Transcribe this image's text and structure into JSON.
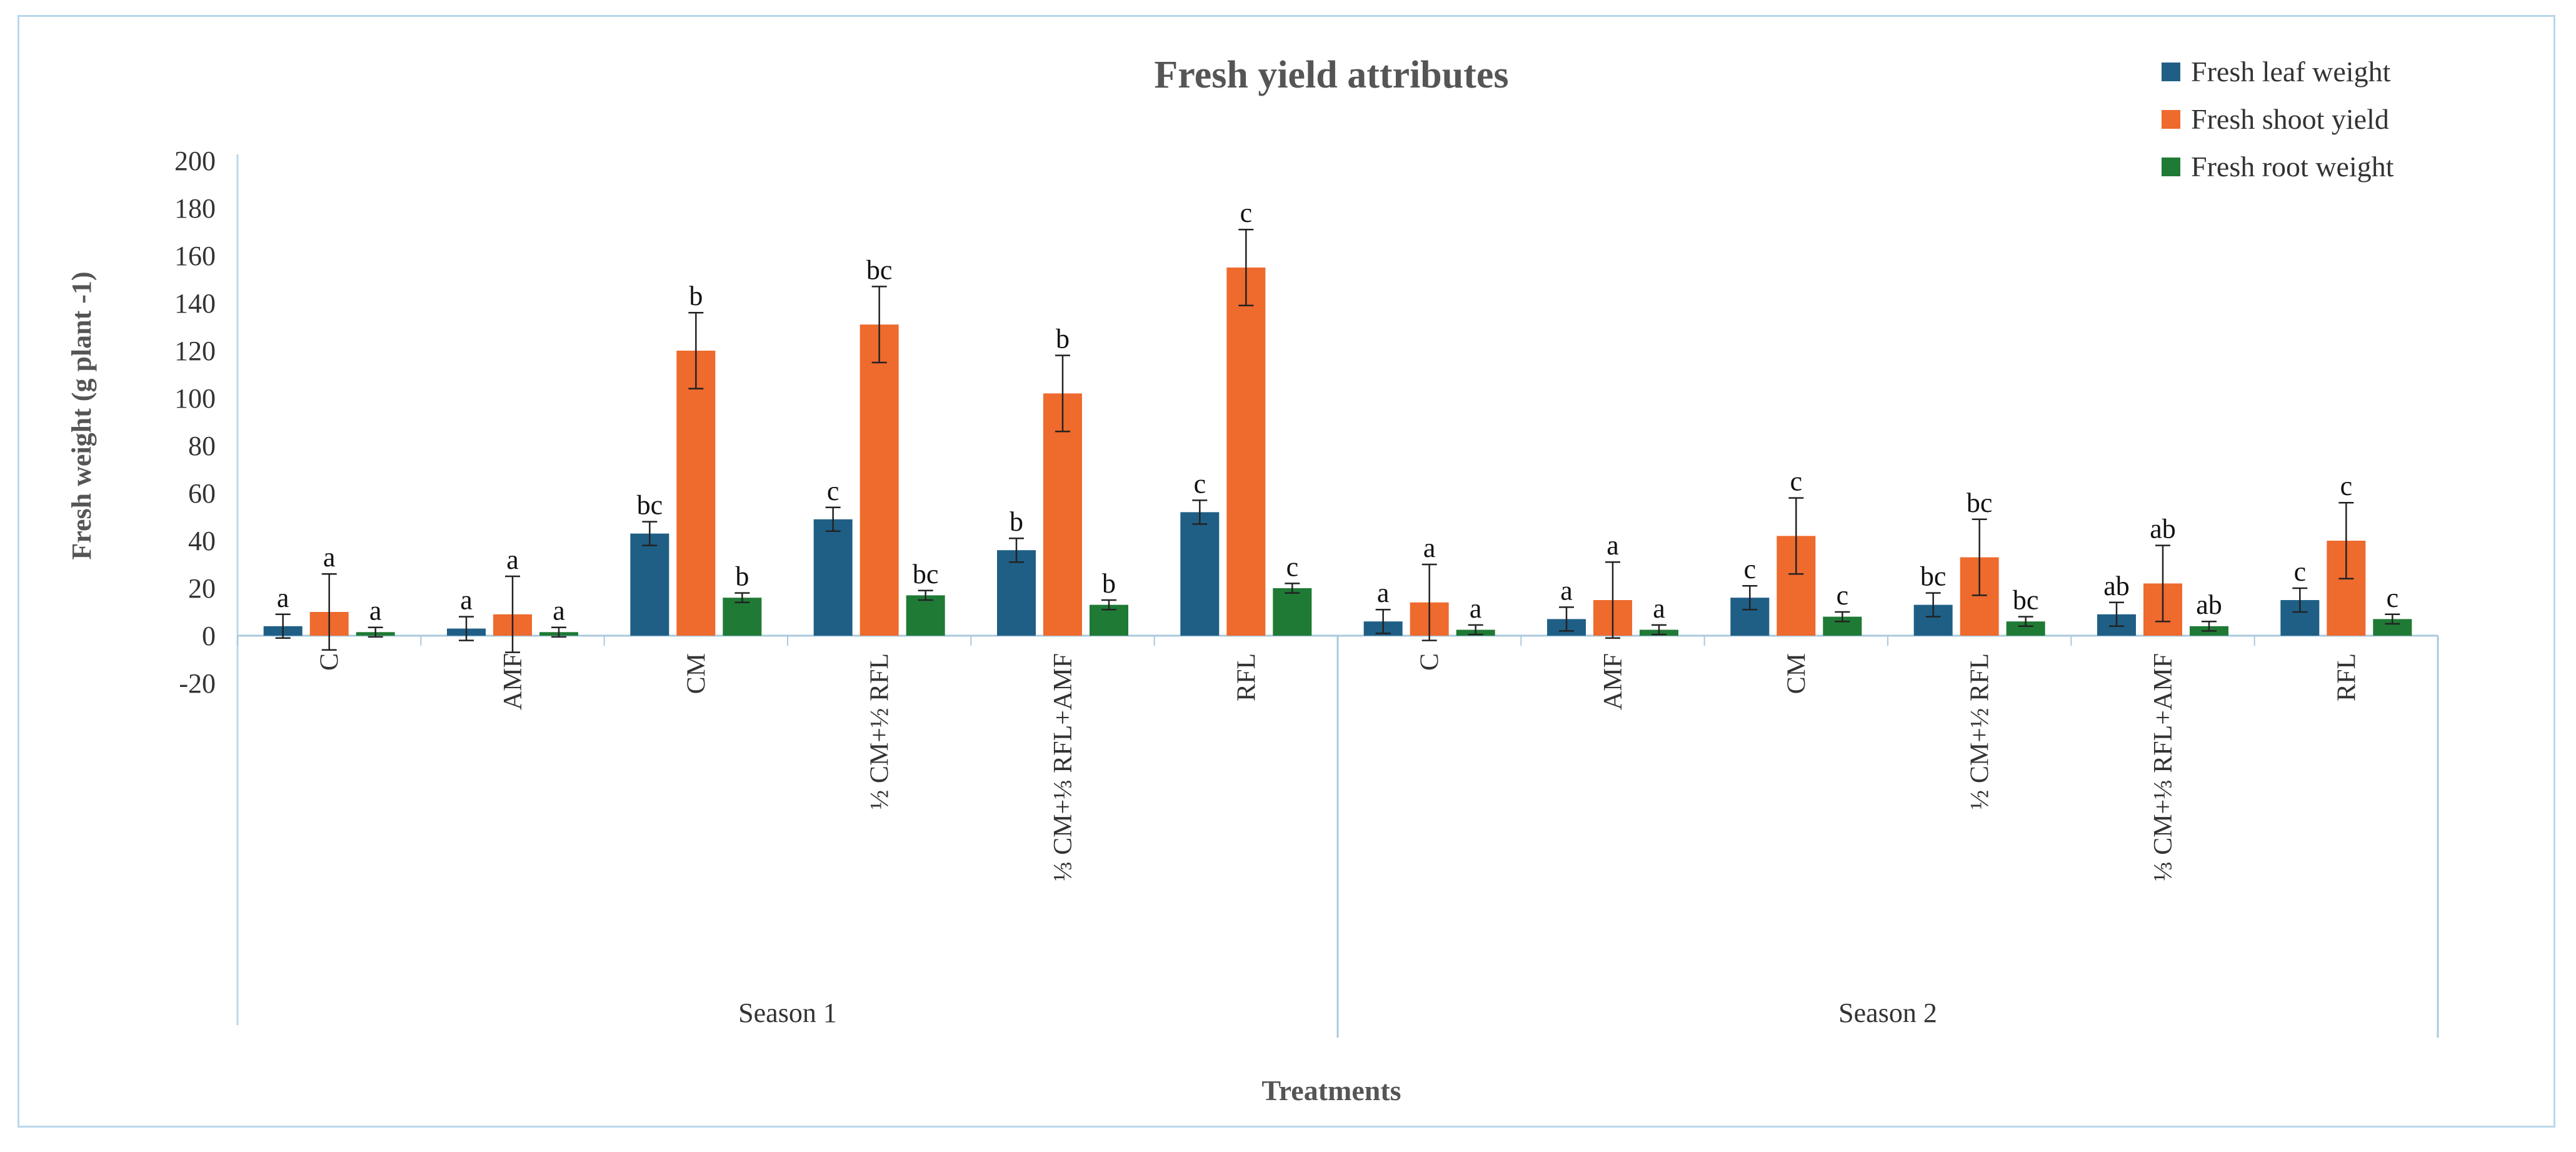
{
  "chart_data": {
    "type": "bar",
    "title": "Fresh yield attributes",
    "xlabel": "Treatments",
    "ylabel": "Fresh weight (g plant -1)",
    "ylim": [
      -20,
      200
    ],
    "yticks": [
      -20,
      0,
      20,
      40,
      60,
      80,
      100,
      120,
      140,
      160,
      180,
      200
    ],
    "legend_position": "top-right",
    "groups": [
      {
        "label": "Season 1",
        "categories": [
          "C",
          "AMF",
          "CM",
          "½ CM+½ RFL",
          "⅓ CM+⅓ RFL+AMF",
          "RFL"
        ]
      },
      {
        "label": "Season 2",
        "categories": [
          "C",
          "AMF",
          "CM",
          "½ CM+½ RFL",
          "⅓ CM+⅓ RFL+AMF",
          "RFL"
        ]
      }
    ],
    "series": [
      {
        "name": "Fresh leaf weight",
        "color": "#1f5f86",
        "values": [
          4,
          3,
          43,
          49,
          36,
          52,
          6,
          7,
          16,
          13,
          9,
          15
        ],
        "errors": [
          5,
          5,
          5,
          5,
          5,
          5,
          5,
          5,
          5,
          5,
          5,
          5
        ],
        "letters": [
          "a",
          "a",
          "bc",
          "c",
          "b",
          "c",
          "a",
          "a",
          "c",
          "bc",
          "ab",
          "c"
        ]
      },
      {
        "name": "Fresh shoot yield",
        "color": "#ee6a2d",
        "values": [
          10,
          9,
          120,
          131,
          102,
          155,
          14,
          15,
          42,
          33,
          22,
          40
        ],
        "errors": [
          16,
          16,
          16,
          16,
          16,
          16,
          16,
          16,
          16,
          16,
          16,
          16
        ],
        "letters": [
          "a",
          "a",
          "b",
          "bc",
          "b",
          "c",
          "a",
          "a",
          "c",
          "bc",
          "ab",
          "c"
        ]
      },
      {
        "name": "Fresh root weight",
        "color": "#1f7a35",
        "values": [
          1.5,
          1.5,
          16,
          17,
          13,
          20,
          2.5,
          2.5,
          8,
          6,
          4,
          7
        ],
        "errors": [
          2,
          2,
          2,
          2,
          2,
          2,
          2,
          2,
          2,
          2,
          2,
          2
        ],
        "letters": [
          "a",
          "a",
          "b",
          "bc",
          "b",
          "c",
          "a",
          "a",
          "c",
          "bc",
          "ab",
          "c"
        ]
      }
    ]
  }
}
